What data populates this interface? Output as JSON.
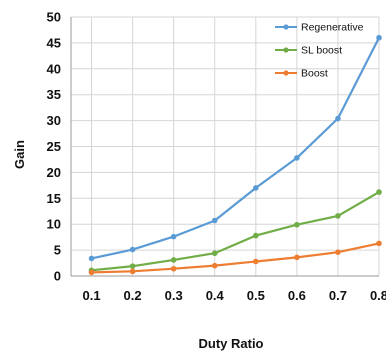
{
  "chart_data": {
    "type": "line",
    "title": "",
    "xlabel": "Duty Ratio",
    "ylabel": "Gain",
    "x": [
      0.1,
      0.2,
      0.3,
      0.4,
      0.5,
      0.6,
      0.7,
      0.8
    ],
    "x_tick_labels": [
      "0.1",
      "0.2",
      "0.3",
      "0.4",
      "0.5",
      "0.6",
      "0.7",
      "0.8"
    ],
    "y_ticks": [
      0,
      5,
      10,
      15,
      20,
      25,
      30,
      35,
      40,
      45,
      50
    ],
    "y_tick_labels": [
      "0",
      "5",
      "10",
      "15",
      "20",
      "25",
      "30",
      "35",
      "40",
      "45",
      "50"
    ],
    "xlim": [
      0.05,
      0.8
    ],
    "ylim": [
      0,
      50
    ],
    "grid": true,
    "legend_position": "top-right",
    "series": [
      {
        "name": "Regenerative",
        "color": "#5b9bd5",
        "values": [
          3.4,
          5.1,
          7.6,
          10.7,
          17.0,
          22.8,
          30.4,
          46.0
        ]
      },
      {
        "name": "SL boost",
        "color": "#70ad47",
        "values": [
          1.1,
          1.9,
          3.1,
          4.4,
          7.8,
          9.9,
          11.6,
          16.2
        ]
      },
      {
        "name": "Boost",
        "color": "#ed7d31",
        "values": [
          0.7,
          0.9,
          1.4,
          2.0,
          2.8,
          3.6,
          4.6,
          6.3
        ]
      }
    ]
  }
}
